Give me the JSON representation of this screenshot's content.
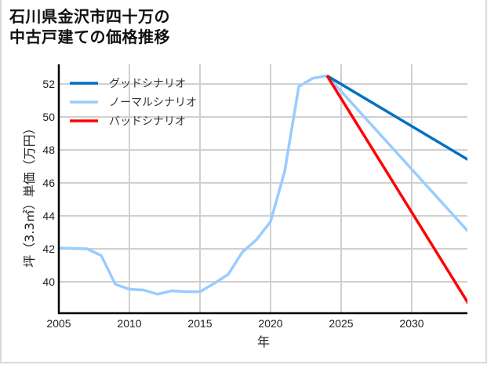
{
  "title_lines": [
    "石川県金沢市四十万の",
    "中古戸建ての価格推移"
  ],
  "chart_data": {
    "type": "line",
    "title": "石川県金沢市四十万の中古戸建ての価格推移",
    "xlabel": "年",
    "ylabel": "坪（3.3㎡）単価（万円）",
    "xlim": [
      2005,
      2034
    ],
    "ylim": [
      38,
      53
    ],
    "x_ticks": [
      2005,
      2010,
      2015,
      2020,
      2025,
      2030
    ],
    "y_ticks": [
      40,
      42,
      44,
      46,
      48,
      50,
      52
    ],
    "grid": true,
    "legend_position": "upper left",
    "series": [
      {
        "name": "グッドシナリオ",
        "color": "#0070C0",
        "x": [
          2024,
          2034
        ],
        "values": [
          52.5,
          47.4
        ]
      },
      {
        "name": "ノーマルシナリオ",
        "color": "#99CCFF",
        "x": [
          2005,
          2007,
          2008,
          2009,
          2010,
          2011,
          2012,
          2013,
          2014,
          2015,
          2016,
          2017,
          2018,
          2019,
          2020,
          2021,
          2022,
          2023,
          2024,
          2034
        ],
        "values": [
          42.05,
          42.0,
          41.6,
          39.85,
          39.55,
          39.5,
          39.25,
          39.45,
          39.4,
          39.4,
          39.9,
          40.45,
          41.8,
          42.55,
          43.65,
          46.7,
          51.85,
          52.35,
          52.5,
          43.05
        ]
      },
      {
        "name": "バッドシナリオ",
        "color": "#FF0000",
        "x": [
          2024,
          2034
        ],
        "values": [
          52.5,
          38.7
        ]
      }
    ]
  }
}
